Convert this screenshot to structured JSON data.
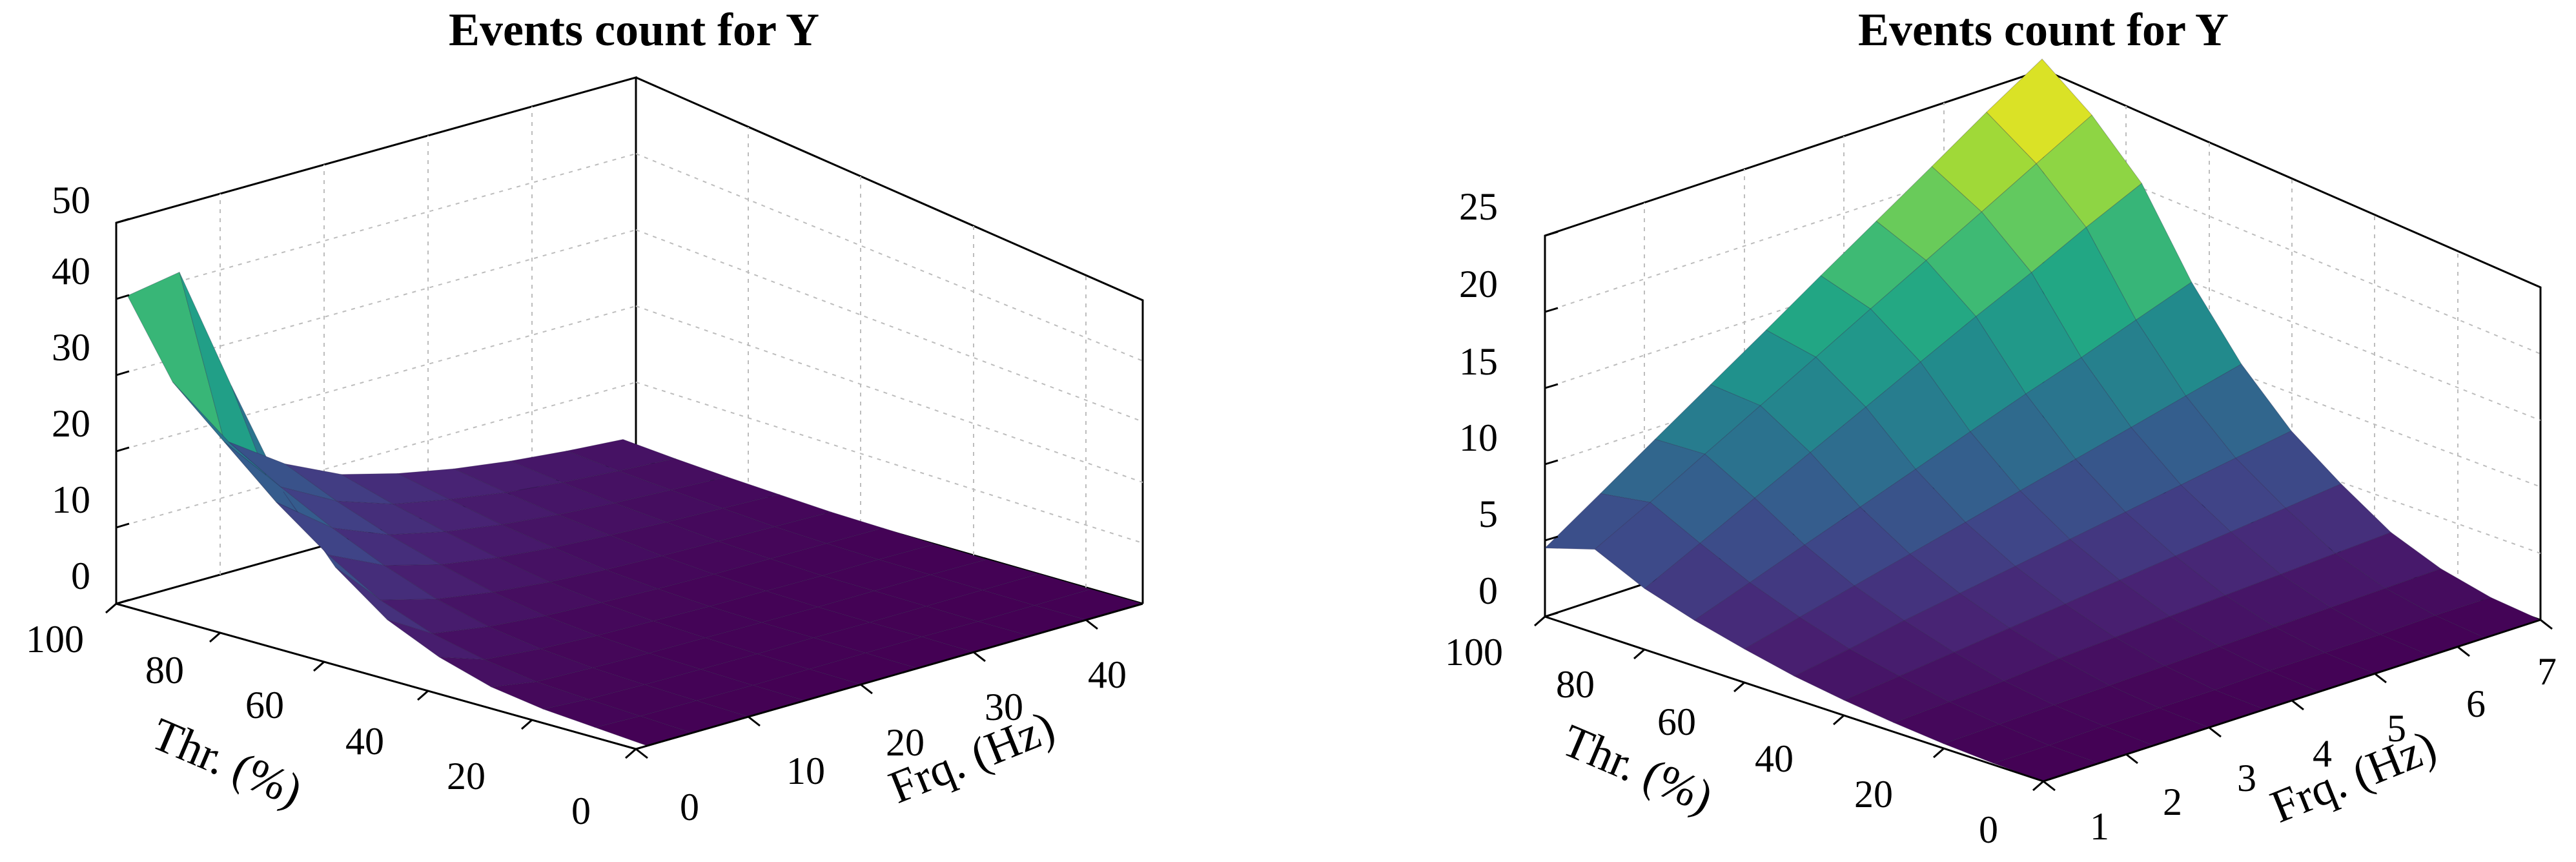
{
  "chart_data": [
    {
      "type": "surface",
      "title": "Events count for Y",
      "xlabel": "Frq. (Hz)",
      "ylabel": "Thr. (%)",
      "zlabel": "",
      "xlim": [
        0,
        45
      ],
      "ylim": [
        0,
        100
      ],
      "zlim": [
        0,
        50
      ],
      "xticks": [
        "0",
        "10",
        "20",
        "30",
        "40"
      ],
      "yticks": [
        "0",
        "20",
        "40",
        "60",
        "80",
        "100"
      ],
      "zticks": [
        "0",
        "10",
        "20",
        "30",
        "40",
        "50"
      ],
      "grid": true,
      "colormap": "viridis",
      "thr_values": [
        0,
        10,
        20,
        30,
        40,
        50,
        60,
        70,
        80,
        90,
        100
      ],
      "freq_values": [
        1,
        5,
        10,
        15,
        20,
        25,
        30,
        35,
        40,
        45
      ],
      "z_values": [
        [
          0,
          0,
          0,
          0,
          0,
          0,
          0,
          0,
          0,
          0
        ],
        [
          0.5,
          0.3,
          0.2,
          0.1,
          0.1,
          0.1,
          0.1,
          0,
          0,
          0
        ],
        [
          1,
          0.6,
          0.4,
          0.3,
          0.2,
          0.2,
          0.1,
          0.1,
          0.1,
          0.1
        ],
        [
          2,
          1,
          0.7,
          0.5,
          0.4,
          0.3,
          0.2,
          0.2,
          0.2,
          0.1
        ],
        [
          4,
          2,
          1.3,
          0.9,
          0.7,
          0.5,
          0.4,
          0.3,
          0.3,
          0.2
        ],
        [
          7,
          3.5,
          2.3,
          1.6,
          1.2,
          0.9,
          0.7,
          0.6,
          0.5,
          0.4
        ],
        [
          12,
          6,
          4,
          2.8,
          2,
          1.5,
          1.2,
          1,
          0.8,
          0.6
        ],
        [
          20,
          10,
          6.5,
          4.5,
          3.3,
          2.5,
          2,
          1.6,
          1.3,
          1
        ],
        [
          32,
          15,
          9.5,
          6.5,
          4.8,
          3.6,
          2.8,
          2.2,
          1.8,
          1.4
        ],
        [
          45,
          21,
          13,
          9,
          6.5,
          5,
          3.8,
          3,
          2.4,
          1.9
        ],
        [
          40,
          27,
          17,
          12,
          8.5,
          6.5,
          5,
          3.9,
          3.1,
          2.5
        ]
      ]
    },
    {
      "type": "surface",
      "title": "Events count for Y",
      "xlabel": "Frq. (Hz)",
      "ylabel": "Thr. (%)",
      "zlabel": "",
      "xlim": [
        1,
        7
      ],
      "ylim": [
        0,
        100
      ],
      "zlim": [
        0,
        25
      ],
      "xticks": [
        "1",
        "2",
        "3",
        "4",
        "5",
        "6",
        "7"
      ],
      "yticks": [
        "0",
        "20",
        "40",
        "60",
        "80",
        "100"
      ],
      "zticks": [
        "0",
        "5",
        "10",
        "15",
        "20",
        "25"
      ],
      "grid": true,
      "colormap": "viridis",
      "thr_values": [
        0,
        10,
        20,
        30,
        40,
        50,
        60,
        70,
        80,
        90,
        100
      ],
      "freq_values": [
        1,
        1.67,
        2.33,
        3,
        3.67,
        4.33,
        5,
        5.67,
        6.33,
        7
      ],
      "z_values": [
        [
          0,
          0,
          0,
          0,
          0,
          0,
          0,
          0,
          0,
          0
        ],
        [
          0.1,
          0.1,
          0.2,
          0.2,
          0.2,
          0.3,
          0.3,
          0.3,
          0.4,
          0.4
        ],
        [
          0.3,
          0.4,
          0.5,
          0.6,
          0.7,
          0.8,
          0.9,
          1,
          1.1,
          1.2
        ],
        [
          0.6,
          0.8,
          1,
          1.3,
          1.5,
          1.7,
          1.9,
          2.1,
          2.3,
          2.5
        ],
        [
          1,
          1.4,
          1.8,
          2.2,
          2.6,
          3,
          3.4,
          3.8,
          4.2,
          4.6
        ],
        [
          1.5,
          2.1,
          2.8,
          3.4,
          4,
          4.6,
          5.2,
          5.8,
          6.4,
          7
        ],
        [
          2.2,
          3.1,
          4,
          4.9,
          5.8,
          6.7,
          7.6,
          8.5,
          9.4,
          10.3
        ],
        [
          3,
          4.3,
          5.6,
          6.9,
          8.2,
          9.5,
          10.8,
          12,
          13.3,
          14.6
        ],
        [
          4,
          5.8,
          7.6,
          9.4,
          11.2,
          13,
          14.8,
          16.5,
          18.3,
          20
        ],
        [
          5.5,
          7.4,
          9.4,
          11.4,
          13.4,
          15.4,
          17.4,
          19.4,
          21.4,
          23.4
        ],
        [
          4.5,
          6.9,
          9.3,
          11.7,
          14.1,
          16.5,
          18.9,
          21.3,
          23.7,
          26
        ]
      ]
    }
  ]
}
